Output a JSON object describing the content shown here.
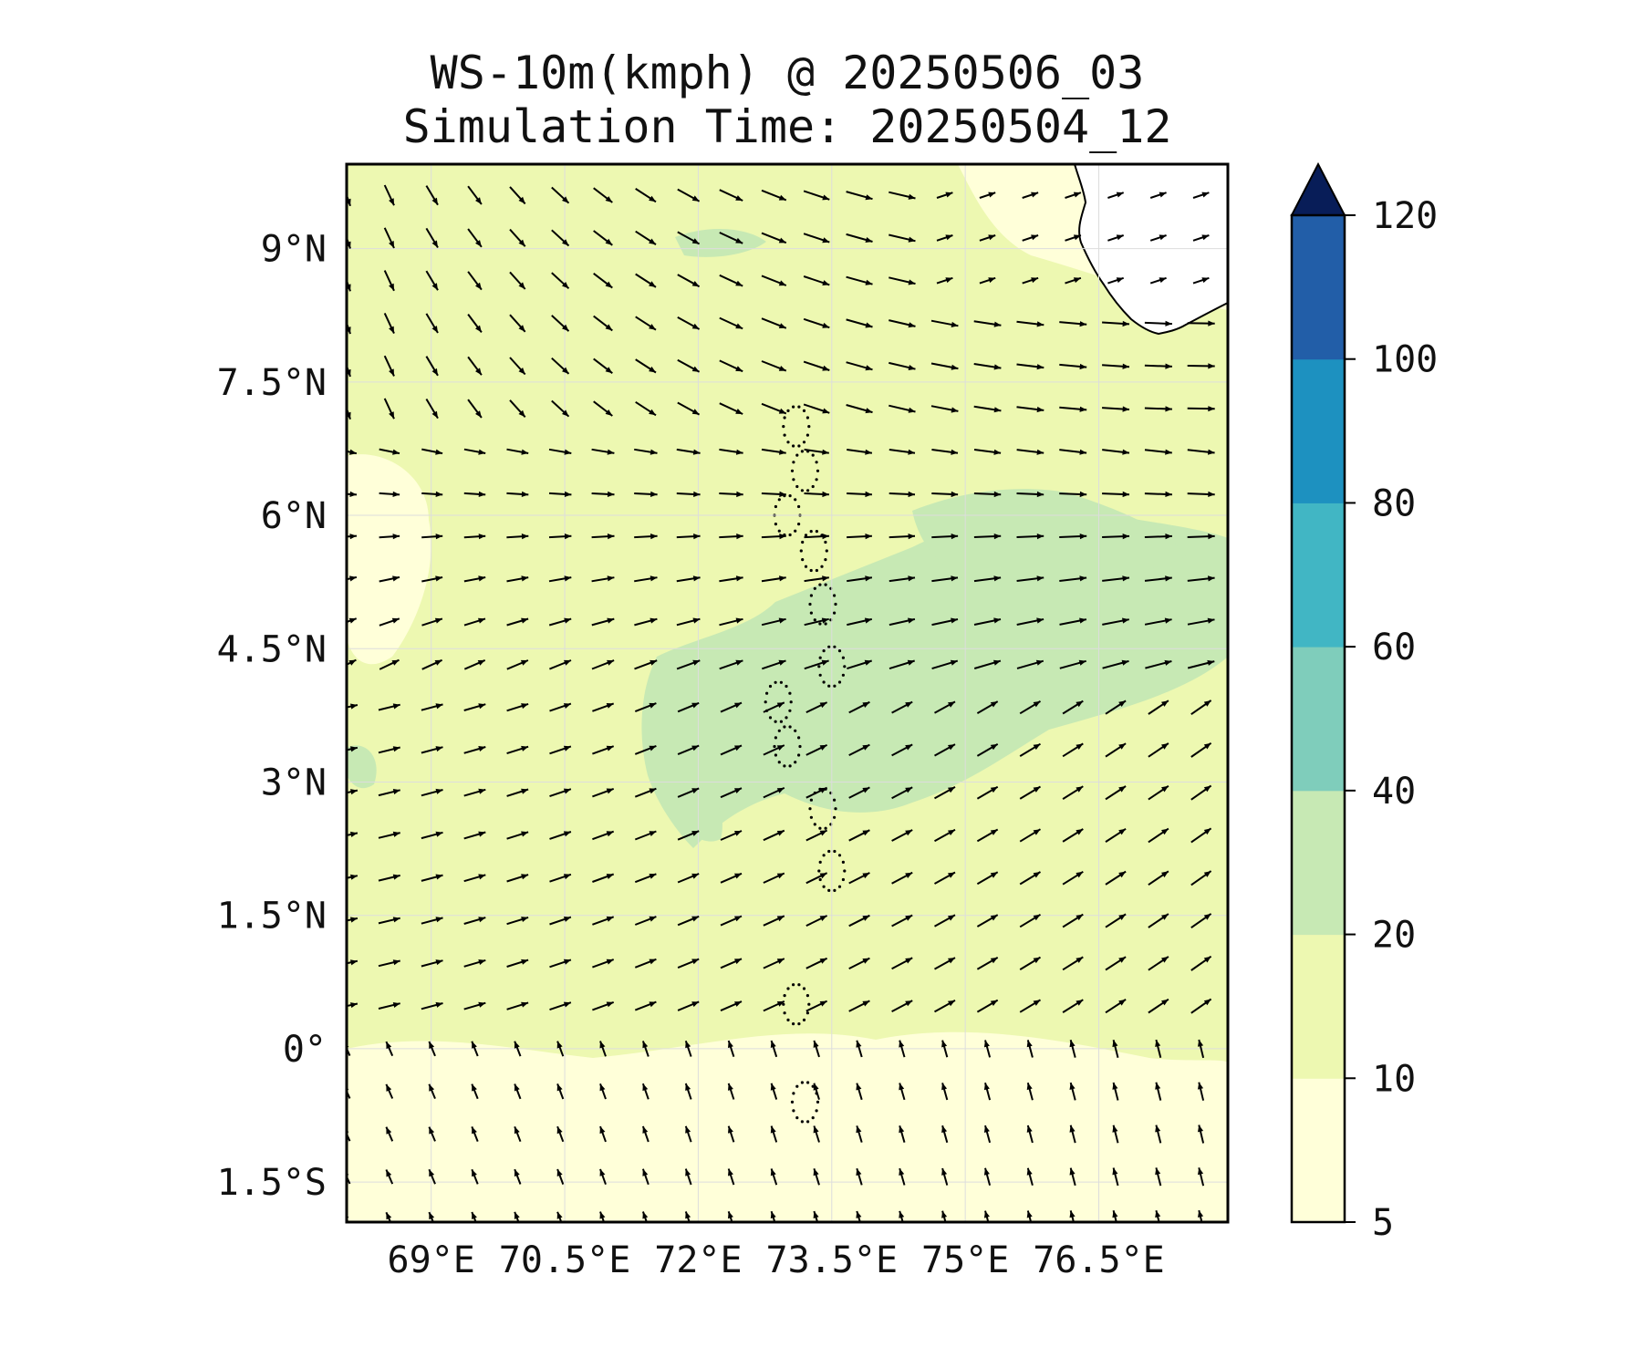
{
  "title_line1": "WS-10m(kmph) @ 20250506_03",
  "title_line2": "Simulation Time: 20250504_12",
  "lat_ticks": [
    {
      "value": 9.0,
      "label": "9°N"
    },
    {
      "value": 7.5,
      "label": "7.5°N"
    },
    {
      "value": 6.0,
      "label": "6°N"
    },
    {
      "value": 4.5,
      "label": "4.5°N"
    },
    {
      "value": 3.0,
      "label": "3°N"
    },
    {
      "value": 1.5,
      "label": "1.5°N"
    },
    {
      "value": 0.0,
      "label": "0°"
    },
    {
      "value": -1.5,
      "label": "1.5°S"
    }
  ],
  "lon_ticks": [
    {
      "value": 69.0,
      "label": "69°E"
    },
    {
      "value": 70.5,
      "label": "70.5°E"
    },
    {
      "value": 72.0,
      "label": "72°E"
    },
    {
      "value": 73.5,
      "label": "73.5°E"
    },
    {
      "value": 75.0,
      "label": "75°E"
    },
    {
      "value": 76.5,
      "label": "76.5°E"
    }
  ],
  "extent": {
    "lon_min": 68.05,
    "lon_max": 77.95,
    "lat_min": -1.95,
    "lat_max": 9.95
  },
  "colorbar": {
    "levels": [
      {
        "label": "5",
        "value": 5
      },
      {
        "label": "10",
        "value": 10
      },
      {
        "label": "20",
        "value": 20
      },
      {
        "label": "40",
        "value": 40
      },
      {
        "label": "60",
        "value": 60
      },
      {
        "label": "80",
        "value": 80
      },
      {
        "label": "100",
        "value": 100
      },
      {
        "label": "120",
        "value": 120
      }
    ],
    "colors": [
      "#ffffd9",
      "#edf8b1",
      "#c7e9b4",
      "#7fcdbb",
      "#41b6c4",
      "#1d91c0",
      "#225ea8",
      "#0c2c84"
    ],
    "extend": "max",
    "extend_color": "#081d58"
  },
  "colors": {
    "base_field": "#edf8b1",
    "low_wind": "#ffffd9",
    "mid_wind": "#c7e9b4",
    "land": "#ffffff",
    "arrow": "#000000",
    "grid": "#dddddd"
  },
  "vector_field": {
    "description_units": "kmph",
    "lon_start": 68.05,
    "lon_step": 0.48,
    "lon_count": 21,
    "lat_start": 9.6,
    "lat_step": -0.48,
    "lat_count": 25
  }
}
